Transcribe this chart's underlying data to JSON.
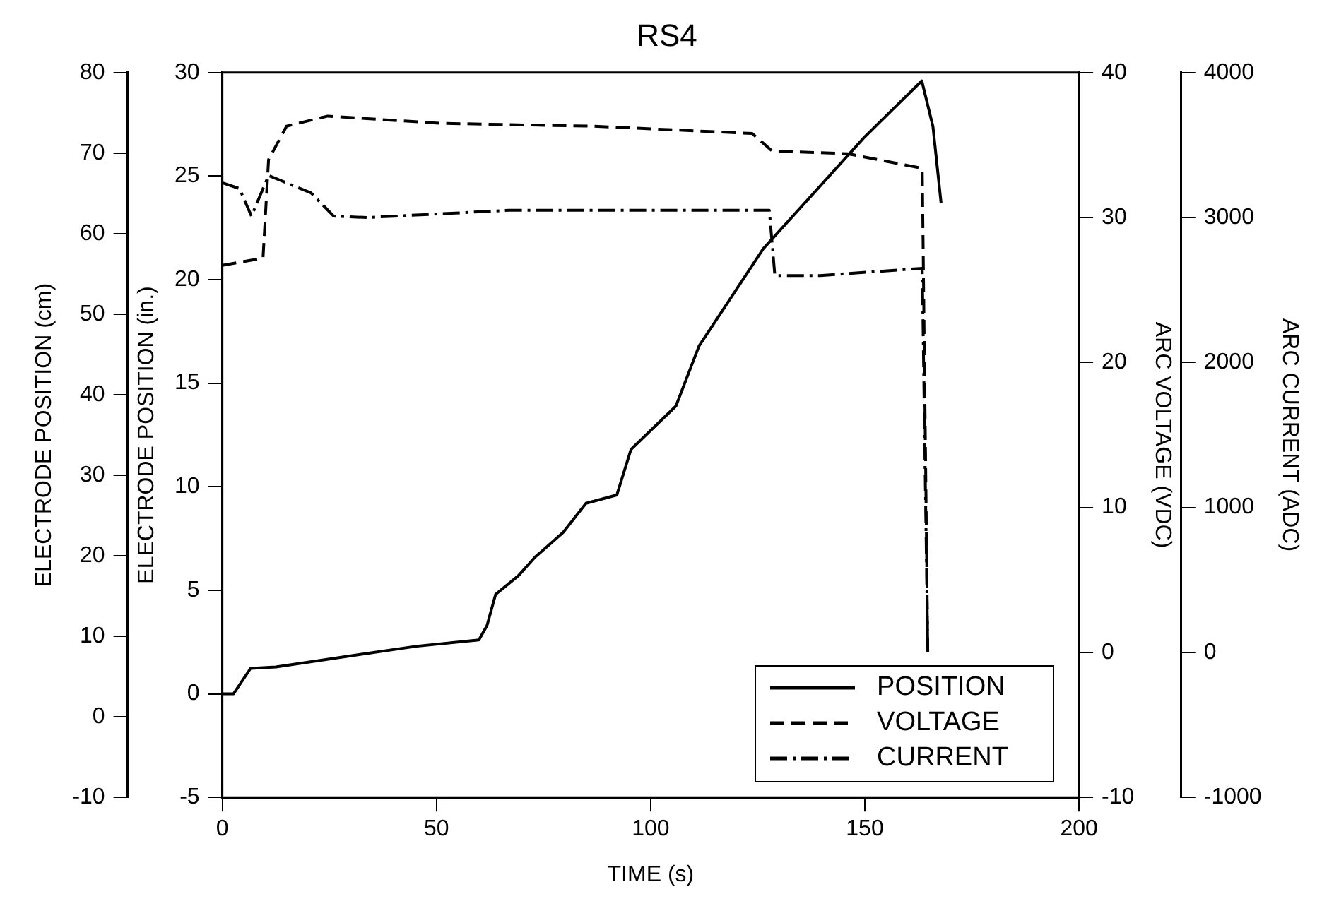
{
  "chart_data": {
    "type": "line",
    "title": "RS4",
    "xlabel": "TIME (s)",
    "ylabel": "ELECTRODE POSITION (in.)",
    "y2label": "ARC VOLTAGE (VDC)",
    "y3label": "ARC CURRENT (ADC)",
    "annotations": [
      "ELECTRODE POSITION (cm)",
      "-10",
      "0",
      "10",
      "20",
      "30",
      "40",
      "50",
      "60",
      "70",
      "80"
    ],
    "xlim": [
      0,
      200
    ],
    "xticks": [
      0,
      50,
      100,
      150,
      200
    ],
    "ylim": [
      -5,
      30
    ],
    "yticks": [
      -5,
      0,
      5,
      10,
      15,
      20,
      25,
      30
    ],
    "y2lim": [
      -10,
      40
    ],
    "y2ticks": [
      -10,
      0,
      10,
      20,
      30,
      40
    ],
    "y3lim": [
      -1000,
      4000
    ],
    "y3ticks": [
      -1000,
      0,
      1000,
      2000,
      3000,
      4000
    ],
    "grid": false,
    "legend": "bottom right",
    "marker": "none",
    "series": [
      {
        "name": "POSITION",
        "color": "#000000",
        "line_style": "solid",
        "axis": "y",
        "x": [
          0,
          2.6,
          6.6,
          12.5,
          21.7,
          32.2,
          45.4,
          59.9,
          61.8,
          63.8,
          69.1,
          73,
          79.6,
          84.9,
          92.1,
          95.4,
          105.9,
          111.3,
          126.3,
          150,
          163.3,
          165.9,
          167.8
        ],
        "values": [
          0,
          0,
          1.23,
          1.3,
          1.58,
          1.9,
          2.3,
          2.6,
          3.3,
          4.8,
          5.7,
          6.6,
          7.8,
          9.2,
          9.6,
          11.8,
          13.9,
          16.8,
          21.5,
          26.9,
          29.6,
          27.4,
          23.7
        ]
      },
      {
        "name": "VOLTAGE",
        "color": "#000000",
        "line_style": "dashed",
        "axis": "y2",
        "x": [
          0,
          9.5,
          10.8,
          15,
          24.6,
          51,
          86.7,
          123.7,
          128.3,
          146,
          163.4,
          164.7
        ],
        "values": [
          26.7,
          27.2,
          34,
          36.3,
          37,
          36.5,
          36.3,
          35.8,
          34.6,
          34.4,
          33.4,
          0
        ]
      },
      {
        "name": "CURRENT",
        "color": "#000000",
        "line_style": "dotted",
        "axis": "y3",
        "x": [
          0,
          4,
          6.8,
          10.8,
          20.7,
          26,
          33.9,
          66.9,
          127.7,
          129,
          139.6,
          163.4,
          164.7
        ],
        "values": [
          3240,
          3200,
          3010,
          3290,
          3170,
          3010,
          3000,
          3050,
          3050,
          2600,
          2600,
          2650,
          0
        ]
      }
    ]
  }
}
